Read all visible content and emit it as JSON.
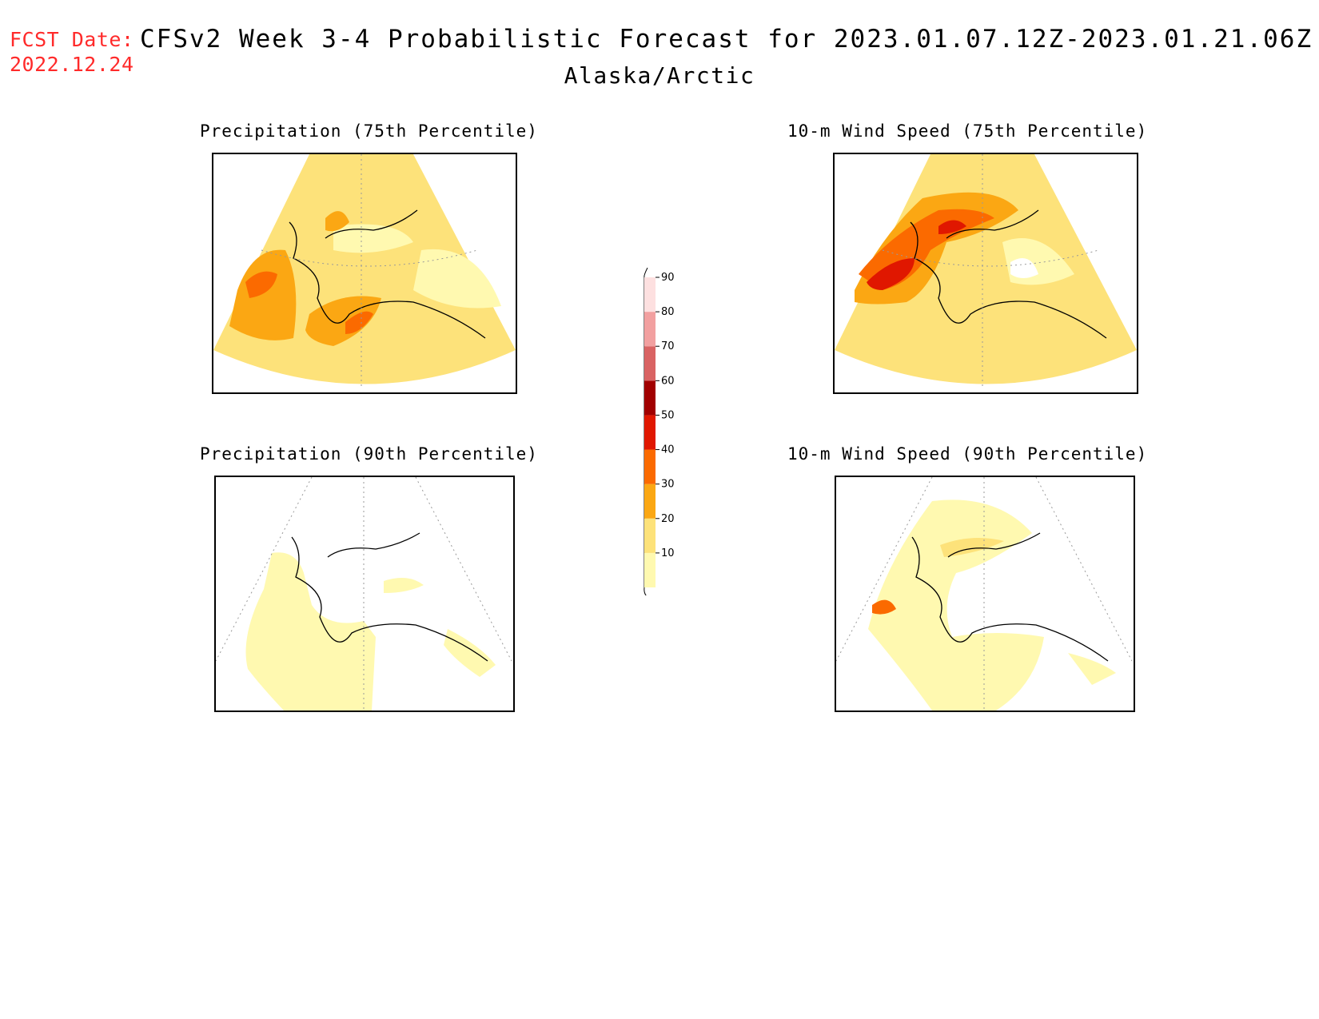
{
  "header": {
    "fcst_label": "FCST Date:",
    "fcst_date": "2022.12.24",
    "title": "CFSv2 Week 3-4 Probabilistic Forecast for 2023.01.07.12Z-2023.01.21.06Z",
    "region": "Alaska/Arctic"
  },
  "panels": [
    {
      "title": "Precipitation (75th Percentile)"
    },
    {
      "title": "10-m Wind Speed (75th Percentile)"
    },
    {
      "title": "Precipitation (90th Percentile)"
    },
    {
      "title": "10-m Wind Speed (90th Percentile)"
    }
  ],
  "colorbar": {
    "levels": [
      "10",
      "20",
      "30",
      "40",
      "50",
      "60",
      "70",
      "80",
      "90"
    ],
    "colors": [
      "#fff9b0",
      "#fde27a",
      "#fba713",
      "#fb6a00",
      "#e01700",
      "#a10000",
      "#d96363",
      "#f2a0a0",
      "#fde0e0"
    ]
  }
}
